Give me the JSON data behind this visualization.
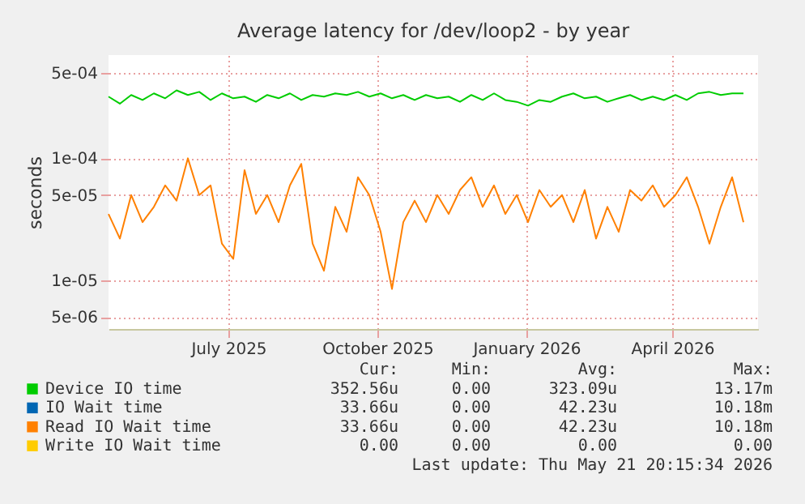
{
  "chart_data": {
    "type": "line",
    "title": "Average latency for /dev/loop2 - by year",
    "ylabel": "seconds",
    "log": "y",
    "grid": true,
    "legend": "bottom",
    "ylim": [
      4e-06,
      0.0007
    ],
    "yticks": [
      {
        "value": 5e-06,
        "label": "5e-06"
      },
      {
        "value": 1e-05,
        "label": "1e-05"
      },
      {
        "value": 5e-05,
        "label": "5e-05"
      },
      {
        "value": 0.0001,
        "label": "1e-04"
      },
      {
        "value": 0.0005,
        "label": "5e-04"
      }
    ],
    "xlim": [
      "2025-04-18",
      "2026-05-24"
    ],
    "xticks": [
      {
        "value": "2025-07-01",
        "label": "July 2025"
      },
      {
        "value": "2025-10-01",
        "label": "October 2025"
      },
      {
        "value": "2026-01-01",
        "label": "January 2026"
      },
      {
        "value": "2026-04-01",
        "label": "April 2026"
      }
    ],
    "x": [
      "2025-04-18",
      "2025-04-25",
      "2025-05-02",
      "2025-05-09",
      "2025-05-16",
      "2025-05-23",
      "2025-05-30",
      "2025-06-06",
      "2025-06-13",
      "2025-06-20",
      "2025-06-27",
      "2025-07-04",
      "2025-07-11",
      "2025-07-18",
      "2025-07-25",
      "2025-08-01",
      "2025-08-08",
      "2025-08-15",
      "2025-08-22",
      "2025-08-29",
      "2025-09-05",
      "2025-09-12",
      "2025-09-19",
      "2025-09-26",
      "2025-10-03",
      "2025-10-10",
      "2025-10-17",
      "2025-10-24",
      "2025-10-31",
      "2025-11-07",
      "2025-11-14",
      "2025-11-21",
      "2025-11-28",
      "2025-12-05",
      "2025-12-12",
      "2025-12-19",
      "2025-12-26",
      "2026-01-02",
      "2026-01-09",
      "2026-01-16",
      "2026-01-23",
      "2026-01-30",
      "2026-02-06",
      "2026-02-13",
      "2026-02-20",
      "2026-02-27",
      "2026-03-06",
      "2026-03-13",
      "2026-03-20",
      "2026-03-27",
      "2026-04-03",
      "2026-04-10",
      "2026-04-17",
      "2026-04-24",
      "2026-05-01",
      "2026-05-08",
      "2026-05-15"
    ],
    "series": [
      {
        "name": "Device IO time",
        "color": "#00cc00",
        "values": [
          0.00032,
          0.00028,
          0.00033,
          0.0003,
          0.00034,
          0.00031,
          0.00036,
          0.00033,
          0.00035,
          0.0003,
          0.00034,
          0.00031,
          0.00032,
          0.00029,
          0.00033,
          0.00031,
          0.00034,
          0.0003,
          0.00033,
          0.00032,
          0.00034,
          0.00033,
          0.00035,
          0.00032,
          0.00034,
          0.00031,
          0.00033,
          0.0003,
          0.00033,
          0.00031,
          0.00032,
          0.00029,
          0.00033,
          0.0003,
          0.00034,
          0.0003,
          0.00029,
          0.00027,
          0.0003,
          0.00029,
          0.00032,
          0.00034,
          0.00031,
          0.00032,
          0.00029,
          0.00031,
          0.00033,
          0.0003,
          0.00032,
          0.0003,
          0.00033,
          0.0003,
          0.00034,
          0.00035,
          0.00033,
          0.00034,
          0.00034
        ]
      },
      {
        "name": "IO Wait time",
        "color": "#0066b3",
        "values": [
          null,
          null,
          null,
          null,
          null,
          null,
          null,
          null,
          null,
          null,
          null,
          null,
          null,
          null,
          null,
          null,
          null,
          null,
          null,
          null,
          null,
          null,
          null,
          null,
          null,
          null,
          null,
          null,
          null,
          null,
          null,
          null,
          null,
          null,
          null,
          null,
          null,
          null,
          null,
          null,
          null,
          null,
          null,
          null,
          null,
          null,
          null,
          null,
          null,
          null,
          null,
          null,
          null,
          null,
          null,
          null,
          null
        ]
      },
      {
        "name": "Read IO Wait time",
        "color": "#ff8000",
        "values": [
          3.5e-05,
          2.2e-05,
          5e-05,
          3e-05,
          4e-05,
          6e-05,
          4.5e-05,
          0.0001,
          5e-05,
          6e-05,
          2e-05,
          1.5e-05,
          8e-05,
          3.5e-05,
          5e-05,
          3e-05,
          6e-05,
          9e-05,
          2e-05,
          1.2e-05,
          4e-05,
          2.5e-05,
          7e-05,
          5e-05,
          2.5e-05,
          8.5e-06,
          3e-05,
          4.5e-05,
          3e-05,
          5e-05,
          3.5e-05,
          5.5e-05,
          7e-05,
          4e-05,
          6e-05,
          3.5e-05,
          5e-05,
          3e-05,
          5.5e-05,
          4e-05,
          5e-05,
          3e-05,
          5.5e-05,
          2.2e-05,
          4e-05,
          2.5e-05,
          5.5e-05,
          4.5e-05,
          6e-05,
          4e-05,
          5e-05,
          7e-05,
          4e-05,
          2e-05,
          4e-05,
          7e-05,
          3e-05
        ]
      },
      {
        "name": "Write IO Wait time",
        "color": "#ffcc00",
        "values": [
          null,
          null,
          null,
          null,
          null,
          null,
          null,
          null,
          null,
          null,
          null,
          null,
          null,
          null,
          null,
          null,
          null,
          null,
          null,
          null,
          null,
          null,
          null,
          null,
          null,
          null,
          null,
          null,
          null,
          null,
          null,
          null,
          null,
          null,
          null,
          null,
          null,
          null,
          null,
          null,
          null,
          null,
          null,
          null,
          null,
          null,
          null,
          null,
          null,
          null,
          null,
          null,
          null,
          null,
          null,
          null,
          null
        ]
      }
    ],
    "annotations": [
      "Cur:",
      "Min:",
      "Avg:",
      "Max:",
      "352.56u",
      "0.00",
      "323.09u",
      "13.17m",
      "33.66u",
      "0.00",
      "42.23u",
      "10.18m",
      "33.66u",
      "0.00",
      "42.23u",
      "10.18m",
      "0.00",
      "0.00",
      "0.00",
      "0.00",
      "Last update: Thu May 21 20:15:34 2026"
    ]
  }
}
